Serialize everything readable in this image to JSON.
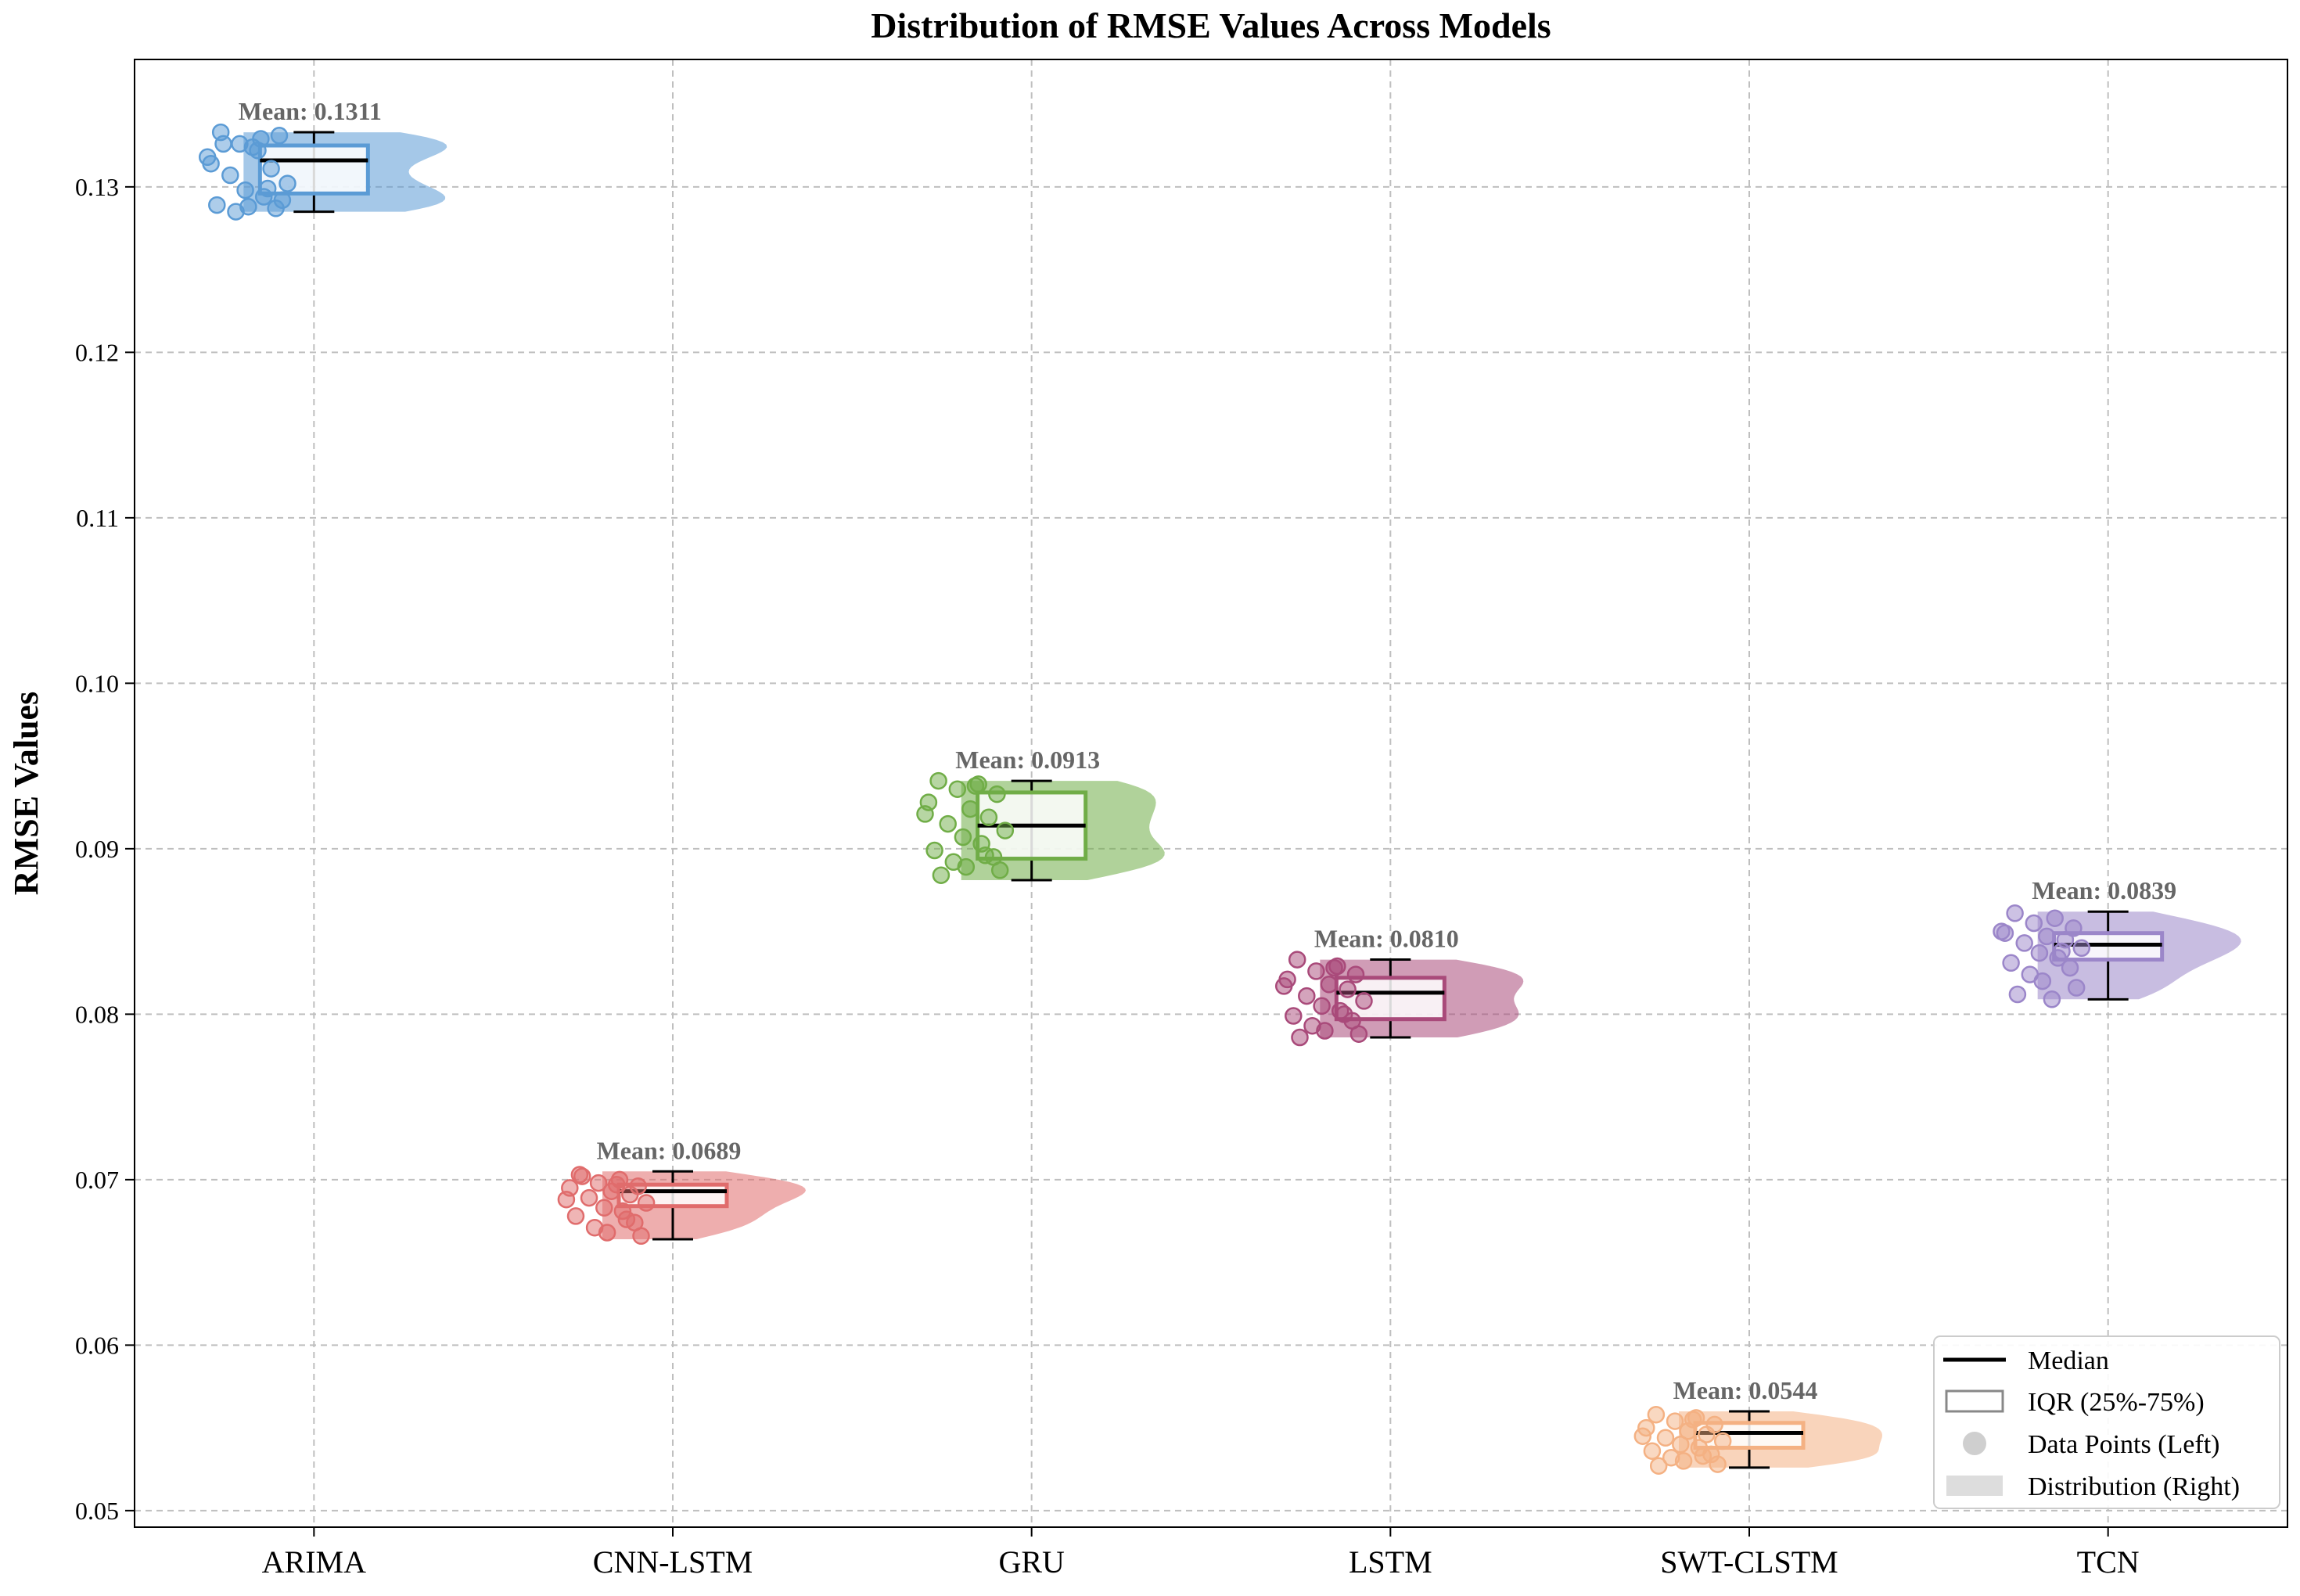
{
  "chart_data": {
    "type": "box",
    "title": "Distribution of RMSE Values Across Models",
    "xlabel": "",
    "ylabel": "RMSE Values",
    "ylim": [
      0.049,
      0.1377
    ],
    "yticks": [
      0.05,
      0.06,
      0.07,
      0.08,
      0.09,
      0.1,
      0.11,
      0.12,
      0.13
    ],
    "ytick_labels": [
      "0.05",
      "0.06",
      "0.07",
      "0.08",
      "0.09",
      "0.10",
      "0.11",
      "0.12",
      "0.13"
    ],
    "grid": true,
    "legend_position": "bottom-right",
    "legend": [
      {
        "label": "Median",
        "kind": "line"
      },
      {
        "label": "IQR (25%-75%)",
        "kind": "box"
      },
      {
        "label": "Data Points (Left)",
        "kind": "dot"
      },
      {
        "label": "Distribution (Right)",
        "kind": "patch"
      }
    ],
    "categories": [
      "ARIMA",
      "CNN-LSTM",
      "GRU",
      "LSTM",
      "SWT-CLSTM",
      "TCN"
    ],
    "series": [
      {
        "name": "ARIMA",
        "color": "#5b9bd5",
        "mean": 0.1311,
        "mean_label": "Mean: 0.1311",
        "whisker_low": 0.1285,
        "q1": 0.1296,
        "median": 0.1316,
        "q3": 0.1325,
        "whisker_high": 0.1333,
        "points": [
          0.1333,
          0.1329,
          0.1326,
          0.1331,
          0.1314,
          0.1324,
          0.1311,
          0.1307,
          0.1302,
          0.1298,
          0.1294,
          0.1289,
          0.1287,
          0.1285,
          0.1288,
          0.1292,
          0.1326,
          0.1322,
          0.1318,
          0.1299
        ]
      },
      {
        "name": "CNN-LSTM",
        "color": "#e06c6c",
        "mean": 0.0689,
        "mean_label": "Mean: 0.0689",
        "whisker_low": 0.0664,
        "q1": 0.0684,
        "median": 0.0693,
        "q3": 0.0697,
        "whisker_high": 0.0705,
        "points": [
          0.0703,
          0.07,
          0.0698,
          0.0696,
          0.0695,
          0.0693,
          0.0691,
          0.0689,
          0.0686,
          0.0683,
          0.0681,
          0.0678,
          0.0674,
          0.0671,
          0.0668,
          0.0666,
          0.0702,
          0.0697,
          0.0688,
          0.0676
        ]
      },
      {
        "name": "GRU",
        "color": "#70ad47",
        "mean": 0.0913,
        "mean_label": "Mean: 0.0913",
        "whisker_low": 0.0881,
        "q1": 0.0894,
        "median": 0.0914,
        "q3": 0.0934,
        "whisker_high": 0.0941,
        "points": [
          0.0941,
          0.0939,
          0.0936,
          0.0933,
          0.0928,
          0.0924,
          0.0919,
          0.0915,
          0.0911,
          0.0907,
          0.0903,
          0.0899,
          0.0895,
          0.0892,
          0.0889,
          0.0887,
          0.0884,
          0.0938,
          0.0921,
          0.0896
        ]
      },
      {
        "name": "LSTM",
        "color": "#a94a7a",
        "mean": 0.081,
        "mean_label": "Mean: 0.0810",
        "whisker_low": 0.0786,
        "q1": 0.0797,
        "median": 0.0813,
        "q3": 0.0822,
        "whisker_high": 0.0833,
        "points": [
          0.0833,
          0.0829,
          0.0826,
          0.0824,
          0.0821,
          0.0818,
          0.0815,
          0.0811,
          0.0808,
          0.0805,
          0.0802,
          0.0799,
          0.0796,
          0.0793,
          0.079,
          0.0788,
          0.0786,
          0.0828,
          0.0817,
          0.08
        ]
      },
      {
        "name": "SWT-CLSTM",
        "color": "#f4b183",
        "mean": 0.0544,
        "mean_label": "Mean: 0.0544",
        "whisker_low": 0.0526,
        "q1": 0.0538,
        "median": 0.0547,
        "q3": 0.0553,
        "whisker_high": 0.056,
        "points": [
          0.0558,
          0.0556,
          0.0554,
          0.0552,
          0.055,
          0.0548,
          0.0546,
          0.0544,
          0.0542,
          0.054,
          0.0538,
          0.0536,
          0.0534,
          0.0532,
          0.053,
          0.0528,
          0.0527,
          0.0555,
          0.0545,
          0.0533
        ]
      },
      {
        "name": "TCN",
        "color": "#9b86c9",
        "mean": 0.0839,
        "mean_label": "Mean: 0.0839",
        "whisker_low": 0.0809,
        "q1": 0.0833,
        "median": 0.0842,
        "q3": 0.0849,
        "whisker_high": 0.0862,
        "points": [
          0.0861,
          0.0858,
          0.0855,
          0.0852,
          0.0849,
          0.0847,
          0.0845,
          0.0843,
          0.084,
          0.0837,
          0.0834,
          0.0831,
          0.0828,
          0.0824,
          0.082,
          0.0816,
          0.0812,
          0.0809,
          0.085,
          0.0838
        ]
      }
    ]
  }
}
